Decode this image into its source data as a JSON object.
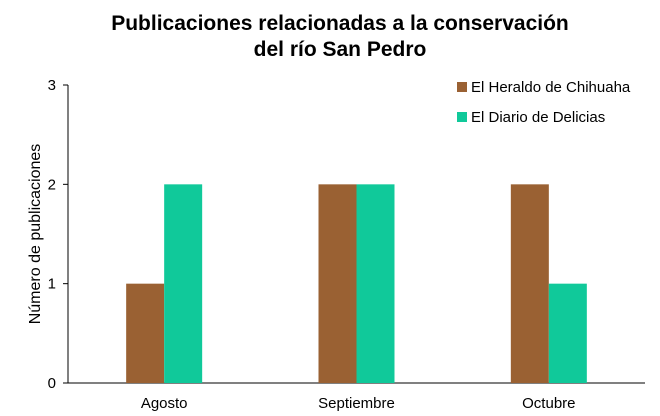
{
  "chart_data": {
    "type": "bar",
    "title": "Publicaciones relacionadas a la conservación del río San Pedro",
    "title_lines": [
      "Publicaciones relacionadas a la conservación",
      "del río San Pedro"
    ],
    "xlabel": "",
    "ylabel": "Número de publicaciones",
    "categories": [
      "Agosto",
      "Septiembre",
      "Octubre"
    ],
    "series": [
      {
        "name": "El Heraldo de Chihuaha",
        "values": [
          1,
          2,
          2
        ],
        "color": "#9a6133"
      },
      {
        "name": "El Diario de Delicias",
        "values": [
          2,
          2,
          1
        ],
        "color": "#10c99a"
      }
    ],
    "ylim": [
      0,
      3
    ],
    "yticks": [
      0,
      1,
      2,
      3
    ],
    "grid": false,
    "legend": "top-right"
  }
}
